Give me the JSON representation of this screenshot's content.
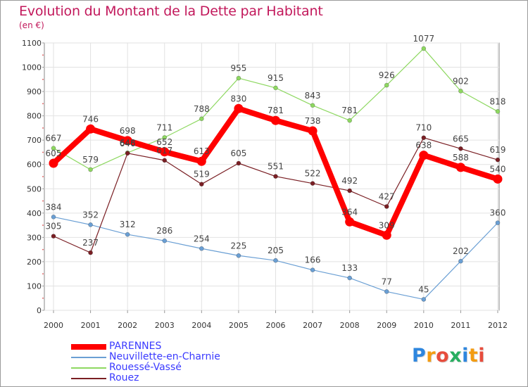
{
  "chart_data": {
    "type": "line",
    "title": "Evolution du Montant de la Dette par Habitant",
    "unit": "(en €)",
    "xlabel": "",
    "ylabel": "",
    "x": [
      "2000",
      "2001",
      "2002",
      "2003",
      "2004",
      "2005",
      "2006",
      "2007",
      "2008",
      "2009",
      "2010",
      "2011",
      "2012"
    ],
    "ylim": [
      0,
      1100
    ],
    "yticks": [
      0,
      100,
      200,
      300,
      400,
      500,
      600,
      700,
      800,
      900,
      1000,
      1100
    ],
    "grid": true,
    "legend_position": "bottom-left",
    "series": [
      {
        "name": "PARENNES",
        "color": "#ff0000",
        "values": [
          605,
          746,
          698,
          652,
          613,
          830,
          781,
          738,
          364,
          309,
          638,
          588,
          540
        ]
      },
      {
        "name": "Neuvillette-en-Charnie",
        "color": "#6a9fd4",
        "values": [
          384,
          352,
          312,
          286,
          254,
          225,
          205,
          166,
          133,
          77,
          45,
          202,
          360
        ]
      },
      {
        "name": "Rouessé-Vassé",
        "color": "#8ed861",
        "values": [
          667,
          579,
          648,
          711,
          788,
          955,
          915,
          843,
          781,
          926,
          1077,
          902,
          818
        ]
      },
      {
        "name": "Rouez",
        "color": "#7a1f24",
        "values": [
          305,
          237,
          646,
          617,
          519,
          605,
          551,
          522,
          492,
          427,
          710,
          665,
          619
        ]
      }
    ]
  },
  "brand": {
    "letters": [
      "P",
      "r",
      "o",
      "x",
      "i",
      "t",
      "i"
    ],
    "colors": [
      "#2e86de",
      "#f39c12",
      "#e74c3c",
      "#27ae60",
      "#2e86de",
      "#f39c12",
      "#e74c3c"
    ]
  }
}
